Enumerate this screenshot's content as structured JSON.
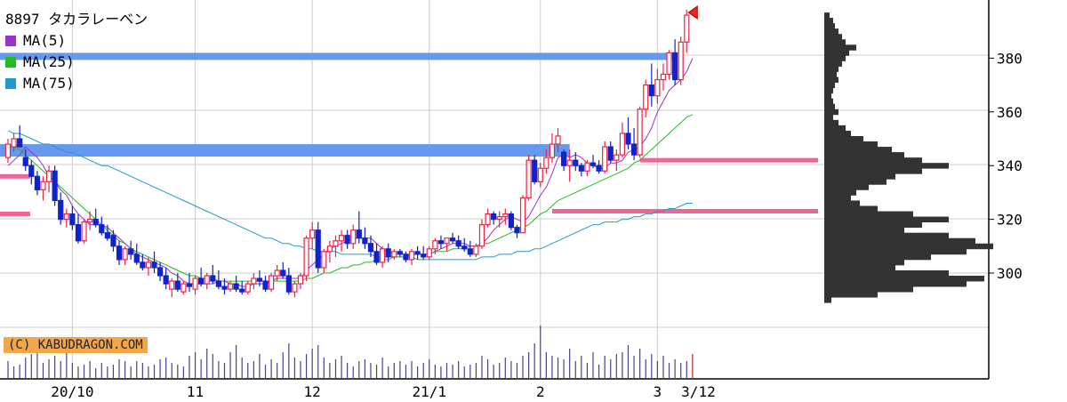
{
  "chart_data": {
    "type": "candlestick",
    "title": "8897 タカラレーベン",
    "legend": [
      {
        "name": "MA(5)",
        "color": "#9933cc"
      },
      {
        "name": "MA(25)",
        "color": "#22bb22"
      },
      {
        "name": "MA(75)",
        "color": "#2299cc"
      }
    ],
    "credit": "(C) KABUDRAGON.COM",
    "y_ticks": [
      300,
      320,
      340,
      360,
      380
    ],
    "ylim": [
      286,
      402
    ],
    "x_labels": [
      {
        "label": "20/10",
        "index": 11
      },
      {
        "label": "11",
        "index": 32
      },
      {
        "label": "12",
        "index": 52
      },
      {
        "label": "21/1",
        "index": 72
      },
      {
        "label": "2",
        "index": 91
      },
      {
        "label": "3",
        "index": 111
      },
      {
        "label": "3/12",
        "index": 118
      }
    ],
    "ohlc": [
      [
        343,
        350,
        341,
        348
      ],
      [
        347,
        352,
        345,
        350
      ],
      [
        350,
        355,
        347,
        347
      ],
      [
        343,
        346,
        338,
        340
      ],
      [
        340,
        342,
        333,
        336
      ],
      [
        336,
        338,
        329,
        331
      ],
      [
        331,
        336,
        327,
        334
      ],
      [
        334,
        340,
        330,
        338
      ],
      [
        338,
        340,
        325,
        327
      ],
      [
        327,
        330,
        318,
        320
      ],
      [
        320,
        324,
        317,
        322
      ],
      [
        322,
        325,
        316,
        318
      ],
      [
        318,
        322,
        311,
        312
      ],
      [
        312,
        320,
        311,
        319
      ],
      [
        319,
        323,
        316,
        320
      ],
      [
        320,
        324,
        317,
        318
      ],
      [
        318,
        321,
        314,
        315
      ],
      [
        315,
        318,
        312,
        313
      ],
      [
        314,
        316,
        308,
        310
      ],
      [
        310,
        312,
        303,
        305
      ],
      [
        305,
        310,
        303,
        309
      ],
      [
        309,
        312,
        305,
        307
      ],
      [
        307,
        311,
        303,
        304
      ],
      [
        304,
        307,
        301,
        302
      ],
      [
        302,
        306,
        299,
        304
      ],
      [
        304,
        308,
        300,
        302
      ],
      [
        302,
        304,
        297,
        299
      ],
      [
        299,
        302,
        294,
        296
      ],
      [
        294,
        298,
        291,
        297
      ],
      [
        297,
        300,
        293,
        294
      ],
      [
        293,
        297,
        292,
        296
      ],
      [
        296,
        300,
        293,
        295
      ],
      [
        294,
        299,
        292,
        298
      ],
      [
        298,
        302,
        295,
        296
      ],
      [
        296,
        300,
        294,
        299
      ],
      [
        299,
        303,
        296,
        297
      ],
      [
        297,
        301,
        294,
        295
      ],
      [
        295,
        298,
        292,
        294
      ],
      [
        294,
        297,
        293,
        296
      ],
      [
        296,
        299,
        293,
        294
      ],
      [
        294,
        297,
        292,
        293
      ],
      [
        293,
        297,
        292,
        296
      ],
      [
        296,
        300,
        294,
        298
      ],
      [
        298,
        301,
        295,
        297
      ],
      [
        297,
        299,
        293,
        294
      ],
      [
        294,
        300,
        293,
        299
      ],
      [
        299,
        303,
        297,
        301
      ],
      [
        301,
        304,
        298,
        299
      ],
      [
        299,
        302,
        292,
        293
      ],
      [
        293,
        297,
        291,
        296
      ],
      [
        296,
        300,
        294,
        299
      ],
      [
        299,
        314,
        297,
        313
      ],
      [
        313,
        319,
        309,
        316
      ],
      [
        316,
        319,
        300,
        302
      ],
      [
        302,
        309,
        300,
        308
      ],
      [
        308,
        312,
        304,
        310
      ],
      [
        310,
        314,
        306,
        312
      ],
      [
        312,
        316,
        308,
        314
      ],
      [
        314,
        316,
        309,
        311
      ],
      [
        311,
        318,
        309,
        316
      ],
      [
        316,
        323,
        311,
        313
      ],
      [
        313,
        317,
        309,
        311
      ],
      [
        311,
        314,
        306,
        308
      ],
      [
        308,
        311,
        303,
        304
      ],
      [
        304,
        310,
        302,
        309
      ],
      [
        309,
        311,
        304,
        306
      ],
      [
        306,
        309,
        305,
        308
      ],
      [
        308,
        309,
        306,
        307
      ],
      [
        307,
        308,
        304,
        305
      ],
      [
        305,
        309,
        303,
        308
      ],
      [
        308,
        310,
        305,
        307
      ],
      [
        307,
        310,
        305,
        306
      ],
      [
        306,
        310,
        305,
        309
      ],
      [
        309,
        313,
        307,
        312
      ],
      [
        312,
        314,
        309,
        311
      ],
      [
        311,
        313,
        308,
        313
      ],
      [
        313,
        315,
        311,
        312
      ],
      [
        312,
        314,
        309,
        310
      ],
      [
        310,
        313,
        308,
        309
      ],
      [
        309,
        312,
        306,
        307
      ],
      [
        307,
        311,
        306,
        310
      ],
      [
        310,
        320,
        309,
        318
      ],
      [
        318,
        324,
        317,
        322
      ],
      [
        322,
        323,
        318,
        320
      ],
      [
        320,
        323,
        317,
        321
      ],
      [
        321,
        324,
        318,
        322
      ],
      [
        322,
        323,
        316,
        317
      ],
      [
        317,
        318,
        313,
        315
      ],
      [
        315,
        329,
        315,
        328
      ],
      [
        328,
        344,
        327,
        342
      ],
      [
        342,
        344,
        333,
        334
      ],
      [
        334,
        341,
        332,
        339
      ],
      [
        339,
        346,
        337,
        343
      ],
      [
        343,
        352,
        341,
        348
      ],
      [
        348,
        354,
        345,
        351
      ],
      [
        345,
        346,
        338,
        340
      ],
      [
        340,
        346,
        334,
        342
      ],
      [
        342,
        345,
        338,
        340
      ],
      [
        340,
        341,
        336,
        338
      ],
      [
        338,
        342,
        336,
        341
      ],
      [
        341,
        344,
        339,
        340
      ],
      [
        340,
        342,
        337,
        338
      ],
      [
        338,
        349,
        337,
        347
      ],
      [
        347,
        349,
        341,
        342
      ],
      [
        342,
        346,
        338,
        344
      ],
      [
        344,
        356,
        343,
        352
      ],
      [
        352,
        358,
        346,
        348
      ],
      [
        348,
        354,
        342,
        344
      ],
      [
        344,
        362,
        343,
        361
      ],
      [
        361,
        372,
        358,
        370
      ],
      [
        370,
        378,
        362,
        366
      ],
      [
        366,
        376,
        363,
        372
      ],
      [
        372,
        378,
        368,
        374
      ],
      [
        374,
        383,
        372,
        382
      ],
      [
        382,
        387,
        370,
        372
      ],
      [
        372,
        388,
        370,
        386
      ],
      [
        386,
        398,
        382,
        396
      ]
    ],
    "ma5": [
      340,
      342,
      344,
      347,
      345,
      343,
      340,
      336,
      334,
      331,
      329,
      325,
      322,
      320,
      318,
      318,
      318,
      317,
      315,
      313,
      311,
      309,
      307,
      306,
      305,
      304,
      303,
      302,
      300,
      299,
      297,
      296,
      296,
      296,
      296,
      296,
      297,
      297,
      296,
      296,
      295,
      295,
      296,
      296,
      296,
      297,
      298,
      298,
      298,
      298,
      298,
      301,
      303,
      305,
      307,
      309,
      310,
      311,
      312,
      313,
      313,
      313,
      313,
      311,
      309,
      308,
      307,
      307,
      307,
      307,
      307,
      307,
      307,
      308,
      309,
      310,
      311,
      311,
      311,
      310,
      310,
      311,
      313,
      316,
      318,
      320,
      321,
      320,
      319,
      321,
      325,
      329,
      332,
      337,
      343,
      344,
      343,
      344,
      343,
      341,
      340,
      339,
      339,
      341,
      341,
      342,
      345,
      346,
      347,
      350,
      354,
      360,
      364,
      368,
      370,
      372,
      375,
      380
    ],
    "ma25": [
      348,
      347,
      346,
      344,
      342,
      340,
      338,
      336,
      334,
      332,
      330,
      328,
      326,
      324,
      322,
      320,
      318,
      316,
      314,
      312,
      311,
      309,
      308,
      307,
      306,
      305,
      304,
      303,
      302,
      301,
      300,
      299,
      299,
      298,
      298,
      298,
      297,
      297,
      297,
      297,
      297,
      297,
      297,
      297,
      297,
      297,
      297,
      297,
      297,
      297,
      297,
      298,
      298,
      299,
      300,
      300,
      301,
      302,
      302,
      303,
      303,
      304,
      304,
      305,
      305,
      305,
      306,
      306,
      306,
      307,
      307,
      307,
      307,
      308,
      308,
      308,
      309,
      309,
      309,
      310,
      310,
      311,
      311,
      312,
      313,
      314,
      315,
      316,
      317,
      318,
      320,
      322,
      323,
      325,
      327,
      328,
      329,
      330,
      331,
      332,
      333,
      334,
      335,
      336,
      337,
      338,
      339,
      341,
      342,
      344,
      346,
      348,
      350,
      352,
      354,
      356,
      358,
      359
    ],
    "ma75": [
      353,
      352,
      352,
      351,
      350,
      349,
      348,
      348,
      347,
      346,
      345,
      345,
      344,
      343,
      342,
      341,
      340,
      340,
      339,
      338,
      337,
      336,
      335,
      334,
      333,
      332,
      331,
      330,
      329,
      328,
      327,
      326,
      325,
      324,
      323,
      322,
      321,
      320,
      319,
      318,
      317,
      316,
      315,
      314,
      313,
      313,
      312,
      311,
      311,
      310,
      310,
      309,
      309,
      308,
      308,
      308,
      308,
      307,
      307,
      307,
      307,
      307,
      307,
      306,
      306,
      306,
      306,
      306,
      306,
      306,
      305,
      305,
      305,
      305,
      305,
      305,
      305,
      305,
      305,
      305,
      305,
      306,
      306,
      306,
      307,
      307,
      307,
      308,
      308,
      308,
      309,
      309,
      310,
      311,
      312,
      313,
      314,
      315,
      316,
      317,
      318,
      318,
      319,
      319,
      319,
      320,
      320,
      321,
      321,
      322,
      322,
      323,
      323,
      324,
      324,
      325,
      326,
      326
    ],
    "volume": [
      20,
      14,
      16,
      24,
      28,
      30,
      18,
      22,
      26,
      20,
      30,
      18,
      14,
      16,
      20,
      12,
      18,
      14,
      16,
      22,
      20,
      14,
      20,
      18,
      14,
      16,
      22,
      24,
      18,
      16,
      14,
      26,
      30,
      22,
      34,
      28,
      20,
      18,
      30,
      38,
      24,
      18,
      20,
      28,
      16,
      22,
      18,
      30,
      40,
      24,
      20,
      28,
      34,
      38,
      24,
      18,
      22,
      26,
      18,
      14,
      20,
      22,
      18,
      16,
      24,
      14,
      18,
      20,
      16,
      20,
      14,
      18,
      22,
      16,
      14,
      18,
      16,
      20,
      14,
      16,
      18,
      26,
      22,
      16,
      18,
      24,
      20,
      18,
      26,
      30,
      40,
      60,
      30,
      26,
      24,
      22,
      34,
      20,
      26,
      18,
      30,
      16,
      26,
      22,
      28,
      30,
      38,
      26,
      34,
      22,
      28,
      20,
      26,
      18,
      22,
      18,
      20,
      28
    ],
    "resistance_bands": [
      {
        "price": 380,
        "end_index": 114
      },
      {
        "price": 346,
        "end_index": 96
      }
    ],
    "short_lines": [
      {
        "price": 336,
        "x_end_index": 0
      },
      {
        "price": 322,
        "x_end_index": 0
      },
      {
        "price": 342,
        "x_start_index": 108
      },
      {
        "price": 323,
        "x_start_index": 93
      }
    ],
    "volume_profile": [
      [
        290,
        4
      ],
      [
        292,
        30
      ],
      [
        294,
        50
      ],
      [
        296,
        80
      ],
      [
        298,
        90
      ],
      [
        300,
        70
      ],
      [
        302,
        40
      ],
      [
        304,
        45
      ],
      [
        306,
        60
      ],
      [
        308,
        80
      ],
      [
        310,
        95
      ],
      [
        312,
        85
      ],
      [
        314,
        70
      ],
      [
        316,
        45
      ],
      [
        318,
        55
      ],
      [
        320,
        70
      ],
      [
        322,
        50
      ],
      [
        324,
        30
      ],
      [
        326,
        20
      ],
      [
        328,
        15
      ],
      [
        330,
        18
      ],
      [
        332,
        25
      ],
      [
        334,
        35
      ],
      [
        336,
        40
      ],
      [
        338,
        55
      ],
      [
        340,
        70
      ],
      [
        342,
        55
      ],
      [
        344,
        45
      ],
      [
        346,
        38
      ],
      [
        348,
        30
      ],
      [
        350,
        22
      ],
      [
        352,
        15
      ],
      [
        354,
        12
      ],
      [
        356,
        8
      ],
      [
        358,
        5
      ],
      [
        360,
        8
      ],
      [
        362,
        6
      ],
      [
        364,
        5
      ],
      [
        366,
        4
      ],
      [
        368,
        5
      ],
      [
        370,
        6
      ],
      [
        372,
        8
      ],
      [
        374,
        7
      ],
      [
        376,
        8
      ],
      [
        378,
        10
      ],
      [
        380,
        12
      ],
      [
        382,
        14
      ],
      [
        384,
        18
      ],
      [
        386,
        12
      ],
      [
        388,
        10
      ],
      [
        390,
        8
      ],
      [
        392,
        6
      ],
      [
        394,
        5
      ],
      [
        396,
        3
      ]
    ],
    "last_marker_price": 397
  }
}
